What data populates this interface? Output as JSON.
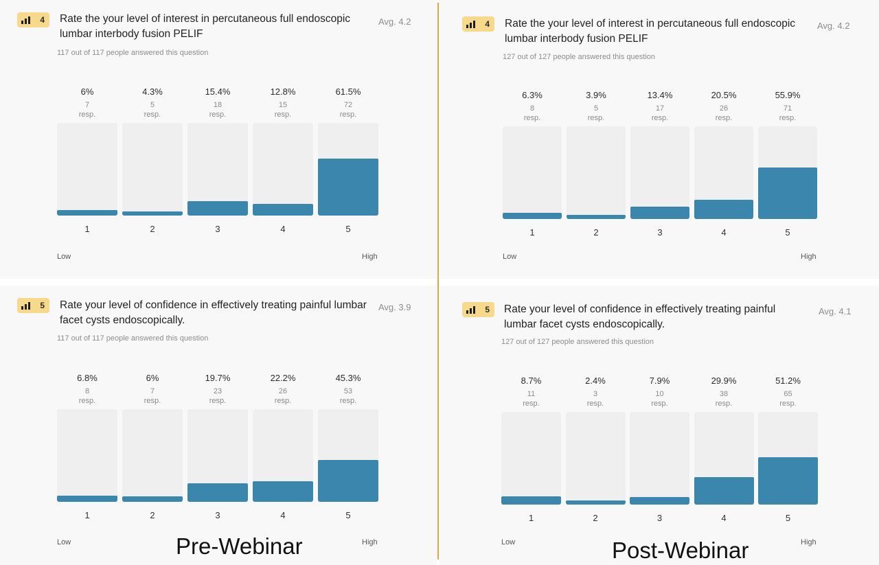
{
  "captions": {
    "pre": "Pre-Webinar",
    "post": "Post-Webinar"
  },
  "chart_data": [
    {
      "type": "bar",
      "group": "Pre-Webinar",
      "badge": "4",
      "title": "Rate the your level of interest in percutaneous full endoscopic lumbar interbody fusion PELIF",
      "avg": "Avg. 4.2",
      "answered": "117 out of 117 people answered this question",
      "categories": [
        "1",
        "2",
        "3",
        "4",
        "5"
      ],
      "pct_labels": [
        "6%",
        "4.3%",
        "15.4%",
        "12.8%",
        "61.5%"
      ],
      "values": [
        6,
        4.3,
        15.4,
        12.8,
        61.5
      ],
      "counts": [
        "7",
        "5",
        "18",
        "15",
        "72"
      ],
      "resp_label": "resp.",
      "low_label": "Low",
      "high_label": "High"
    },
    {
      "type": "bar",
      "group": "Post-Webinar",
      "badge": "4",
      "title": "Rate the your level of interest in percutaneous full endoscopic lumbar interbody fusion PELIF",
      "avg": "Avg. 4.2",
      "answered": "127 out of 127 people answered this question",
      "categories": [
        "1",
        "2",
        "3",
        "4",
        "5"
      ],
      "pct_labels": [
        "6.3%",
        "3.9%",
        "13.4%",
        "20.5%",
        "55.9%"
      ],
      "values": [
        6.3,
        3.9,
        13.4,
        20.5,
        55.9
      ],
      "counts": [
        "8",
        "5",
        "17",
        "26",
        "71"
      ],
      "resp_label": "resp.",
      "low_label": "Low",
      "high_label": "High"
    },
    {
      "type": "bar",
      "group": "Pre-Webinar",
      "badge": "5",
      "title": "Rate your level of confidence in effectively treating painful lumbar facet cysts endoscopically.",
      "avg": "Avg. 3.9",
      "answered": "117 out of 117 people answered this question",
      "categories": [
        "1",
        "2",
        "3",
        "4",
        "5"
      ],
      "pct_labels": [
        "6.8%",
        "6%",
        "19.7%",
        "22.2%",
        "45.3%"
      ],
      "values": [
        6.8,
        6,
        19.7,
        22.2,
        45.3
      ],
      "counts": [
        "8",
        "7",
        "23",
        "26",
        "53"
      ],
      "resp_label": "resp.",
      "low_label": "Low",
      "high_label": "High"
    },
    {
      "type": "bar",
      "group": "Post-Webinar",
      "badge": "5",
      "title": "Rate your level of confidence in effectively treating painful lumbar facet cysts endoscopically.",
      "avg": "Avg. 4.1",
      "answered": "127 out of 127 people answered this question",
      "categories": [
        "1",
        "2",
        "3",
        "4",
        "5"
      ],
      "pct_labels": [
        "8.7%",
        "2.4%",
        "7.9%",
        "29.9%",
        "51.2%"
      ],
      "values": [
        8.7,
        2.4,
        7.9,
        29.9,
        51.2
      ],
      "counts": [
        "11",
        "3",
        "10",
        "38",
        "65"
      ],
      "resp_label": "resp.",
      "low_label": "Low",
      "high_label": "High"
    }
  ]
}
